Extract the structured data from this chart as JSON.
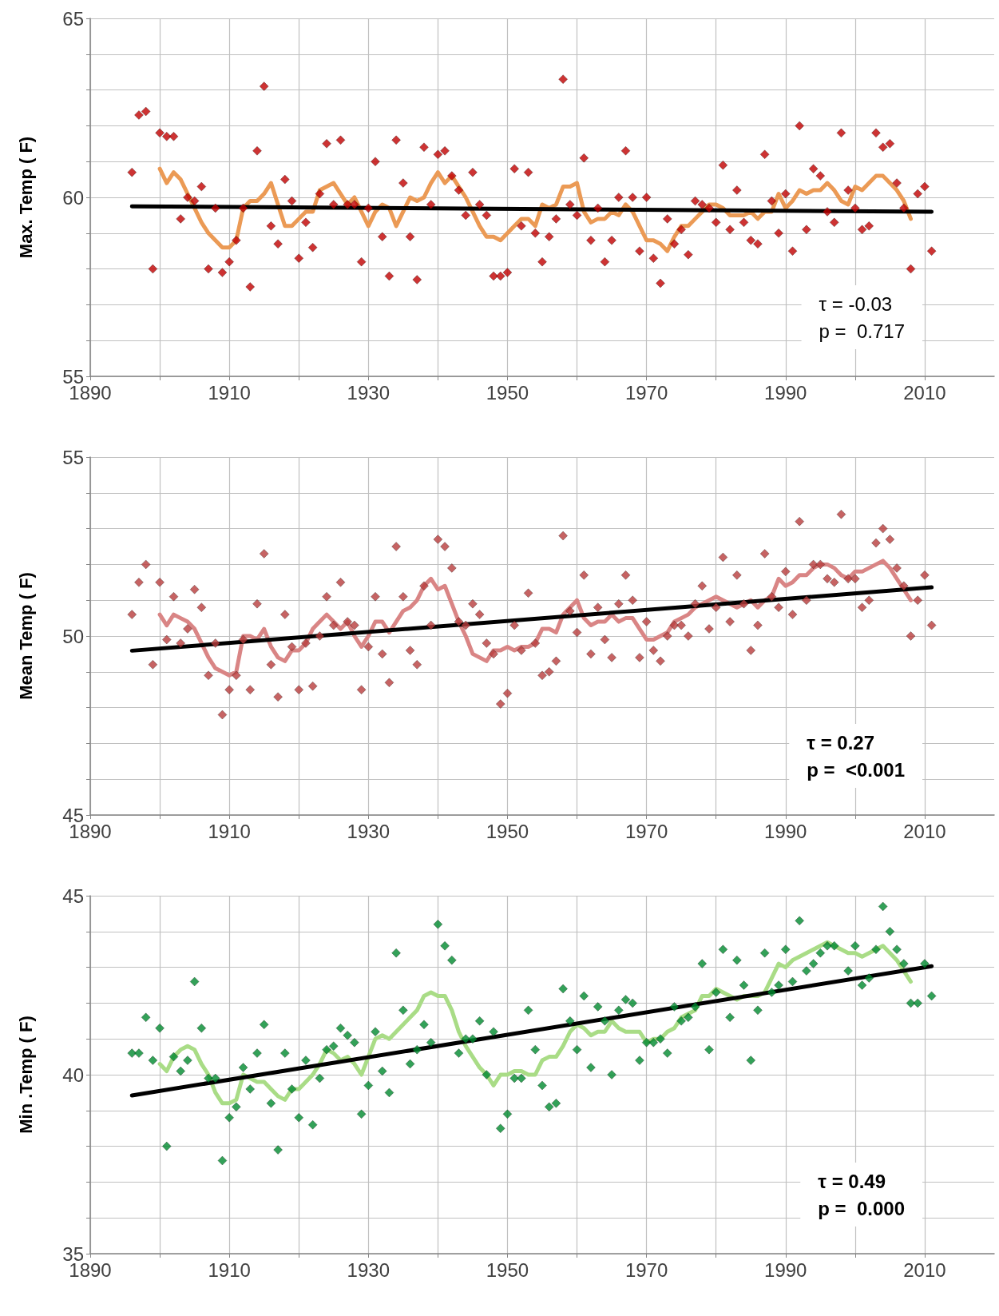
{
  "chart_data": [
    {
      "type": "scatter",
      "ylabel": "Max. Temp ( F)",
      "annotations": [
        "τ = -0.03",
        "p =  0.717"
      ],
      "xlim": [
        1890,
        2020
      ],
      "ylim": [
        55,
        65
      ],
      "grid": true,
      "xticks": [
        1890,
        {
          "value": 1900,
          "label": null
        },
        1910,
        {
          "value": 1920,
          "label": null
        },
        1930,
        {
          "value": 1940,
          "label": null
        },
        1950,
        {
          "value": 1960,
          "label": null
        },
        1970,
        {
          "value": 1980,
          "label": null
        },
        1990,
        {
          "value": 2000,
          "label": null
        },
        2010
      ],
      "yticks": [
        55,
        {
          "value": 56,
          "label": null
        },
        {
          "value": 57,
          "label": null
        },
        {
          "value": 58,
          "label": null
        },
        {
          "value": 59,
          "label": null
        },
        60,
        {
          "value": 61,
          "label": null
        },
        {
          "value": 62,
          "label": null
        },
        {
          "value": 63,
          "label": null
        },
        {
          "value": 64,
          "label": null
        },
        65
      ],
      "x": [
        1896,
        1897,
        1898,
        1899,
        1900,
        1901,
        1902,
        1903,
        1904,
        1905,
        1906,
        1907,
        1908,
        1909,
        1910,
        1911,
        1912,
        1913,
        1914,
        1915,
        1916,
        1917,
        1918,
        1919,
        1920,
        1921,
        1922,
        1923,
        1924,
        1925,
        1926,
        1927,
        1928,
        1929,
        1930,
        1931,
        1932,
        1933,
        1934,
        1935,
        1936,
        1937,
        1938,
        1939,
        1940,
        1941,
        1942,
        1943,
        1944,
        1945,
        1946,
        1947,
        1948,
        1949,
        1950,
        1951,
        1952,
        1953,
        1954,
        1955,
        1956,
        1957,
        1958,
        1959,
        1960,
        1961,
        1962,
        1963,
        1964,
        1965,
        1966,
        1967,
        1968,
        1969,
        1970,
        1971,
        1972,
        1973,
        1974,
        1975,
        1976,
        1977,
        1978,
        1979,
        1980,
        1981,
        1982,
        1983,
        1984,
        1985,
        1986,
        1987,
        1988,
        1989,
        1990,
        1991,
        1992,
        1993,
        1994,
        1995,
        1996,
        1997,
        1998,
        1999,
        2000,
        2001,
        2002,
        2003,
        2004,
        2005,
        2006,
        2007,
        2008,
        2009,
        2010,
        2011
      ],
      "series": [
        {
          "type": "line",
          "marker": "none",
          "color": "#eb9a55",
          "values": [
            null,
            null,
            null,
            null,
            60.8,
            60.4,
            60.7,
            60.5,
            60.1,
            59.7,
            59.3,
            59.0,
            58.8,
            58.6,
            58.6,
            58.8,
            59.7,
            59.9,
            59.9,
            60.1,
            60.4,
            59.8,
            59.2,
            59.2,
            59.4,
            59.6,
            59.6,
            60.2,
            60.3,
            60.4,
            60.1,
            59.8,
            60.0,
            59.6,
            59.2,
            59.6,
            59.8,
            59.7,
            59.2,
            59.6,
            60.0,
            59.9,
            60.0,
            60.4,
            60.7,
            60.4,
            60.6,
            60.3,
            60.0,
            59.6,
            59.2,
            58.9,
            58.9,
            58.8,
            59.0,
            59.2,
            59.4,
            59.4,
            59.2,
            59.8,
            59.7,
            59.8,
            60.3,
            60.3,
            60.4,
            59.6,
            59.3,
            59.4,
            59.4,
            59.6,
            59.5,
            59.8,
            59.6,
            59.2,
            58.8,
            58.8,
            58.7,
            58.5,
            58.9,
            59.2,
            59.2,
            59.4,
            59.6,
            59.8,
            59.8,
            59.7,
            59.5,
            59.5,
            59.5,
            59.6,
            59.4,
            59.6,
            59.6,
            60.1,
            59.7,
            59.9,
            60.2,
            60.1,
            60.2,
            60.2,
            60.4,
            60.2,
            59.9,
            59.8,
            60.3,
            60.2,
            60.4,
            60.6,
            60.6,
            60.4,
            60.2,
            59.9,
            59.4,
            null,
            null,
            null
          ]
        },
        {
          "type": "line",
          "marker": "none",
          "color": "#000000",
          "values": [
            59.75,
            null,
            null,
            null,
            null,
            null,
            null,
            null,
            null,
            null,
            null,
            null,
            null,
            null,
            null,
            null,
            null,
            null,
            null,
            null,
            null,
            null,
            null,
            null,
            null,
            null,
            null,
            null,
            null,
            null,
            null,
            null,
            null,
            null,
            null,
            null,
            null,
            null,
            null,
            null,
            null,
            null,
            null,
            null,
            null,
            null,
            null,
            null,
            null,
            null,
            null,
            null,
            null,
            null,
            null,
            null,
            null,
            null,
            null,
            null,
            null,
            null,
            null,
            null,
            null,
            null,
            null,
            null,
            null,
            null,
            null,
            null,
            null,
            null,
            null,
            null,
            null,
            null,
            null,
            null,
            null,
            null,
            null,
            null,
            null,
            null,
            null,
            null,
            null,
            null,
            null,
            null,
            null,
            null,
            null,
            null,
            null,
            null,
            null,
            null,
            null,
            null,
            null,
            null,
            null,
            null,
            null,
            null,
            null,
            null,
            null,
            null,
            null,
            null,
            null,
            59.6
          ]
        },
        {
          "marker": "diamond",
          "color": "#c00000",
          "values": [
            60.7,
            62.3,
            62.4,
            58.0,
            61.8,
            61.7,
            61.7,
            59.4,
            60.0,
            59.9,
            60.3,
            58.0,
            59.7,
            57.9,
            58.2,
            58.8,
            59.7,
            57.5,
            61.3,
            63.1,
            59.2,
            58.7,
            60.5,
            59.9,
            58.3,
            59.3,
            58.6,
            60.1,
            61.5,
            59.8,
            61.6,
            59.8,
            59.8,
            58.2,
            59.7,
            61.0,
            58.9,
            57.8,
            61.6,
            60.4,
            58.9,
            57.7,
            61.4,
            59.8,
            61.2,
            61.3,
            60.6,
            60.2,
            59.5,
            60.7,
            59.8,
            59.5,
            57.8,
            57.8,
            57.9,
            60.8,
            59.2,
            60.7,
            59.0,
            58.2,
            58.9,
            59.4,
            63.3,
            59.8,
            59.5,
            61.1,
            58.8,
            59.7,
            58.2,
            58.8,
            60.0,
            61.3,
            60.0,
            58.5,
            60.0,
            58.3,
            57.6,
            59.4,
            58.7,
            59.1,
            58.4,
            59.9,
            59.8,
            59.7,
            59.3,
            60.9,
            59.1,
            60.2,
            59.3,
            58.8,
            58.7,
            61.2,
            59.9,
            59.0,
            60.1,
            58.5,
            62.0,
            59.1,
            60.8,
            60.6,
            59.6,
            59.3,
            61.8,
            60.2,
            59.7,
            59.1,
            59.2,
            61.8,
            61.4,
            61.5,
            60.4,
            59.7,
            58.0,
            60.1,
            60.3,
            58.5
          ]
        }
      ]
    },
    {
      "type": "scatter",
      "ylabel": "Mean Temp ( F)",
      "annotations": [
        "τ = 0.27",
        "p =  <0.001"
      ],
      "xlim": [
        1890,
        2020
      ],
      "ylim": [
        45,
        55
      ],
      "grid": true,
      "xticks": [
        1890,
        {
          "value": 1900,
          "label": null
        },
        1910,
        {
          "value": 1920,
          "label": null
        },
        1930,
        {
          "value": 1940,
          "label": null
        },
        1950,
        {
          "value": 1960,
          "label": null
        },
        1970,
        {
          "value": 1980,
          "label": null
        },
        1990,
        {
          "value": 2000,
          "label": null
        },
        2010
      ],
      "yticks": [
        45,
        {
          "value": 46,
          "label": null
        },
        {
          "value": 47,
          "label": null
        },
        {
          "value": 48,
          "label": null
        },
        {
          "value": 49,
          "label": null
        },
        50,
        {
          "value": 51,
          "label": null
        },
        {
          "value": 52,
          "label": null
        },
        {
          "value": 53,
          "label": null
        },
        {
          "value": 54,
          "label": null
        },
        55
      ],
      "x": [
        1896,
        1897,
        1898,
        1899,
        1900,
        1901,
        1902,
        1903,
        1904,
        1905,
        1906,
        1907,
        1908,
        1909,
        1910,
        1911,
        1912,
        1913,
        1914,
        1915,
        1916,
        1917,
        1918,
        1919,
        1920,
        1921,
        1922,
        1923,
        1924,
        1925,
        1926,
        1927,
        1928,
        1929,
        1930,
        1931,
        1932,
        1933,
        1934,
        1935,
        1936,
        1937,
        1938,
        1939,
        1940,
        1941,
        1942,
        1943,
        1944,
        1945,
        1946,
        1947,
        1948,
        1949,
        1950,
        1951,
        1952,
        1953,
        1954,
        1955,
        1956,
        1957,
        1958,
        1959,
        1960,
        1961,
        1962,
        1963,
        1964,
        1965,
        1966,
        1967,
        1968,
        1969,
        1970,
        1971,
        1972,
        1973,
        1974,
        1975,
        1976,
        1977,
        1978,
        1979,
        1980,
        1981,
        1982,
        1983,
        1984,
        1985,
        1986,
        1987,
        1988,
        1989,
        1990,
        1991,
        1992,
        1993,
        1994,
        1995,
        1996,
        1997,
        1998,
        1999,
        2000,
        2001,
        2002,
        2003,
        2004,
        2005,
        2006,
        2007,
        2008,
        2009,
        2010,
        2011
      ],
      "series": [
        {
          "type": "line",
          "marker": "none",
          "color": "#d98585",
          "values": [
            null,
            null,
            null,
            null,
            50.6,
            50.3,
            50.6,
            50.5,
            50.4,
            50.2,
            49.8,
            49.4,
            49.1,
            49.0,
            48.9,
            49.0,
            50.0,
            50.0,
            49.9,
            50.2,
            49.7,
            49.4,
            49.3,
            49.6,
            49.6,
            49.8,
            50.2,
            50.4,
            50.6,
            50.4,
            50.2,
            50.4,
            50.0,
            49.7,
            50.0,
            50.4,
            50.4,
            50.1,
            50.4,
            50.7,
            50.8,
            51.0,
            51.4,
            51.6,
            51.3,
            51.4,
            50.9,
            50.4,
            50.0,
            49.5,
            49.4,
            49.3,
            49.6,
            49.6,
            49.7,
            49.6,
            49.7,
            49.7,
            49.8,
            50.2,
            50.2,
            50.1,
            50.6,
            50.8,
            51.0,
            50.5,
            50.3,
            50.4,
            50.4,
            50.6,
            50.4,
            50.5,
            50.5,
            50.2,
            49.9,
            49.9,
            50.0,
            50.1,
            50.4,
            50.5,
            50.6,
            50.8,
            50.9,
            51.0,
            51.1,
            51.0,
            50.9,
            50.8,
            50.9,
            51.0,
            50.8,
            51.0,
            51.1,
            51.6,
            51.4,
            51.5,
            51.7,
            51.7,
            51.9,
            52.0,
            52.0,
            51.9,
            51.7,
            51.6,
            51.8,
            51.8,
            51.9,
            52.0,
            52.1,
            51.9,
            51.6,
            51.3,
            51.0,
            null,
            null,
            null
          ]
        },
        {
          "type": "line",
          "marker": "none",
          "color": "#000000",
          "values": [
            49.59,
            null,
            null,
            null,
            null,
            null,
            null,
            null,
            null,
            null,
            null,
            null,
            null,
            null,
            null,
            null,
            null,
            null,
            null,
            null,
            null,
            null,
            null,
            null,
            null,
            null,
            null,
            null,
            null,
            null,
            null,
            null,
            null,
            null,
            null,
            null,
            null,
            null,
            null,
            null,
            null,
            null,
            null,
            null,
            null,
            null,
            null,
            null,
            null,
            null,
            null,
            null,
            null,
            null,
            null,
            null,
            null,
            null,
            null,
            null,
            null,
            null,
            null,
            null,
            null,
            null,
            null,
            null,
            null,
            null,
            null,
            null,
            null,
            null,
            null,
            null,
            null,
            null,
            null,
            null,
            null,
            null,
            null,
            null,
            null,
            null,
            null,
            null,
            null,
            null,
            null,
            null,
            null,
            null,
            null,
            null,
            null,
            null,
            null,
            null,
            null,
            null,
            null,
            null,
            null,
            null,
            null,
            null,
            null,
            null,
            null,
            null,
            null,
            null,
            null,
            51.36
          ]
        },
        {
          "marker": "diamond",
          "color": "#b83c3c",
          "values": [
            50.6,
            51.5,
            52.0,
            49.2,
            51.5,
            49.9,
            51.1,
            49.8,
            50.2,
            51.3,
            50.8,
            48.9,
            49.8,
            47.8,
            48.5,
            48.9,
            49.9,
            48.5,
            50.9,
            52.3,
            49.2,
            48.3,
            50.6,
            49.7,
            48.5,
            49.8,
            48.6,
            50.0,
            51.1,
            50.3,
            51.5,
            50.4,
            50.3,
            48.5,
            49.7,
            51.1,
            49.5,
            48.7,
            52.5,
            51.1,
            49.6,
            49.2,
            51.4,
            50.3,
            52.7,
            52.5,
            51.9,
            50.4,
            50.3,
            50.9,
            50.6,
            49.8,
            49.5,
            48.1,
            48.4,
            50.3,
            49.6,
            51.2,
            49.8,
            48.9,
            49.0,
            49.3,
            52.8,
            50.7,
            50.1,
            51.7,
            49.5,
            50.8,
            49.9,
            49.4,
            50.9,
            51.7,
            51.0,
            49.4,
            50.4,
            49.6,
            49.3,
            50.0,
            50.3,
            50.3,
            50.0,
            50.9,
            51.4,
            50.2,
            50.8,
            52.2,
            50.4,
            51.7,
            50.9,
            49.6,
            50.3,
            52.3,
            51.1,
            50.8,
            51.8,
            50.6,
            53.2,
            51.0,
            52.0,
            52.0,
            51.6,
            51.5,
            53.4,
            51.6,
            51.6,
            50.8,
            51.0,
            52.6,
            53.0,
            52.7,
            51.9,
            51.4,
            50.0,
            51.0,
            51.7,
            50.3
          ]
        }
      ]
    },
    {
      "type": "scatter",
      "ylabel": "Min .Temp ( F)",
      "annotations": [
        "τ = 0.49",
        "p =  0.000"
      ],
      "xlim": [
        1890,
        2020
      ],
      "ylim": [
        35,
        45
      ],
      "grid": true,
      "xticks": [
        1890,
        {
          "value": 1900,
          "label": null
        },
        1910,
        {
          "value": 1920,
          "label": null
        },
        1930,
        {
          "value": 1940,
          "label": null
        },
        1950,
        {
          "value": 1960,
          "label": null
        },
        1970,
        {
          "value": 1980,
          "label": null
        },
        1990,
        {
          "value": 2000,
          "label": null
        },
        2010
      ],
      "yticks": [
        35,
        {
          "value": 36,
          "label": null
        },
        {
          "value": 37,
          "label": null
        },
        {
          "value": 38,
          "label": null
        },
        {
          "value": 39,
          "label": null
        },
        40,
        {
          "value": 41,
          "label": null
        },
        {
          "value": 42,
          "label": null
        },
        {
          "value": 43,
          "label": null
        },
        {
          "value": 44,
          "label": null
        },
        45
      ],
      "x": [
        1896,
        1897,
        1898,
        1899,
        1900,
        1901,
        1902,
        1903,
        1904,
        1905,
        1906,
        1907,
        1908,
        1909,
        1910,
        1911,
        1912,
        1913,
        1914,
        1915,
        1916,
        1917,
        1918,
        1919,
        1920,
        1921,
        1922,
        1923,
        1924,
        1925,
        1926,
        1927,
        1928,
        1929,
        1930,
        1931,
        1932,
        1933,
        1934,
        1935,
        1936,
        1937,
        1938,
        1939,
        1940,
        1941,
        1942,
        1943,
        1944,
        1945,
        1946,
        1947,
        1948,
        1949,
        1950,
        1951,
        1952,
        1953,
        1954,
        1955,
        1956,
        1957,
        1958,
        1959,
        1960,
        1961,
        1962,
        1963,
        1964,
        1965,
        1966,
        1967,
        1968,
        1969,
        1970,
        1971,
        1972,
        1973,
        1974,
        1975,
        1976,
        1977,
        1978,
        1979,
        1980,
        1981,
        1982,
        1983,
        1984,
        1985,
        1986,
        1987,
        1988,
        1989,
        1990,
        1991,
        1992,
        1993,
        1994,
        1995,
        1996,
        1997,
        1998,
        1999,
        2000,
        2001,
        2002,
        2003,
        2004,
        2005,
        2006,
        2007,
        2008,
        2009,
        2010,
        2011
      ],
      "series": [
        {
          "type": "line",
          "marker": "none",
          "color": "#a9dc86",
          "values": [
            null,
            null,
            null,
            null,
            40.3,
            40.1,
            40.5,
            40.7,
            40.8,
            40.7,
            40.3,
            40.0,
            39.5,
            39.2,
            39.2,
            39.3,
            40.0,
            39.9,
            39.8,
            39.8,
            39.6,
            39.4,
            39.3,
            39.6,
            39.6,
            39.8,
            40.0,
            40.3,
            40.7,
            40.6,
            40.4,
            40.5,
            40.3,
            40.0,
            40.5,
            41.0,
            41.1,
            41.0,
            41.2,
            41.4,
            41.6,
            41.8,
            42.2,
            42.3,
            42.2,
            42.2,
            41.8,
            41.2,
            40.8,
            40.5,
            40.2,
            40.0,
            39.7,
            40.0,
            40.0,
            40.1,
            40.1,
            40.0,
            40.0,
            40.4,
            40.5,
            40.5,
            40.8,
            41.2,
            41.4,
            41.3,
            41.1,
            41.2,
            41.2,
            41.5,
            41.3,
            41.2,
            41.2,
            41.2,
            40.9,
            41.0,
            41.0,
            41.2,
            41.3,
            41.6,
            41.7,
            41.8,
            42.2,
            42.2,
            42.4,
            42.3,
            42.2,
            42.1,
            42.2,
            42.2,
            42.2,
            42.3,
            42.7,
            43.1,
            43.0,
            43.2,
            43.3,
            43.4,
            43.5,
            43.6,
            43.7,
            43.6,
            43.5,
            43.4,
            43.4,
            43.3,
            43.4,
            43.5,
            43.6,
            43.4,
            43.2,
            42.9,
            42.6,
            null,
            null,
            null
          ]
        },
        {
          "type": "line",
          "marker": "none",
          "color": "#000000",
          "values": [
            39.42,
            null,
            null,
            null,
            null,
            null,
            null,
            null,
            null,
            null,
            null,
            null,
            null,
            null,
            null,
            null,
            null,
            null,
            null,
            null,
            null,
            null,
            null,
            null,
            null,
            null,
            null,
            null,
            null,
            null,
            null,
            null,
            null,
            null,
            null,
            null,
            null,
            null,
            null,
            null,
            null,
            null,
            null,
            null,
            null,
            null,
            null,
            null,
            null,
            null,
            null,
            null,
            null,
            null,
            null,
            null,
            null,
            null,
            null,
            null,
            null,
            null,
            null,
            null,
            null,
            null,
            null,
            null,
            null,
            null,
            null,
            null,
            null,
            null,
            null,
            null,
            null,
            null,
            null,
            null,
            null,
            null,
            null,
            null,
            null,
            null,
            null,
            null,
            null,
            null,
            null,
            null,
            null,
            null,
            null,
            null,
            null,
            null,
            null,
            null,
            null,
            null,
            null,
            null,
            null,
            null,
            null,
            null,
            null,
            null,
            null,
            null,
            null,
            null,
            null,
            43.03
          ]
        },
        {
          "marker": "diamond",
          "color": "#008a2e",
          "values": [
            40.6,
            40.6,
            41.6,
            40.4,
            41.3,
            38.0,
            40.5,
            40.1,
            40.4,
            42.6,
            41.3,
            39.9,
            39.9,
            37.6,
            38.8,
            39.1,
            40.2,
            39.6,
            40.6,
            41.4,
            39.2,
            37.9,
            40.6,
            39.6,
            38.8,
            40.4,
            38.6,
            39.9,
            40.7,
            40.8,
            41.3,
            41.1,
            40.9,
            38.9,
            39.7,
            41.2,
            40.1,
            39.5,
            43.4,
            41.8,
            40.3,
            40.7,
            41.4,
            40.9,
            44.2,
            43.6,
            43.2,
            40.6,
            41.0,
            41.0,
            41.5,
            40.0,
            41.2,
            38.5,
            38.9,
            39.9,
            39.9,
            41.8,
            40.7,
            39.7,
            39.1,
            39.2,
            42.4,
            41.5,
            40.7,
            42.2,
            40.2,
            41.9,
            41.5,
            40.0,
            41.8,
            42.1,
            42.0,
            40.4,
            40.9,
            40.9,
            41.0,
            40.6,
            41.9,
            41.5,
            41.6,
            41.9,
            43.1,
            40.7,
            42.3,
            43.5,
            41.6,
            43.2,
            42.5,
            40.4,
            41.8,
            43.4,
            42.3,
            42.5,
            43.5,
            42.6,
            44.3,
            42.9,
            43.1,
            43.4,
            43.6,
            43.6,
            null,
            42.9,
            43.6,
            42.5,
            42.7,
            43.5,
            44.7,
            44.0,
            43.5,
            43.1,
            42.0,
            42.0,
            43.1,
            42.2
          ]
        }
      ]
    }
  ]
}
